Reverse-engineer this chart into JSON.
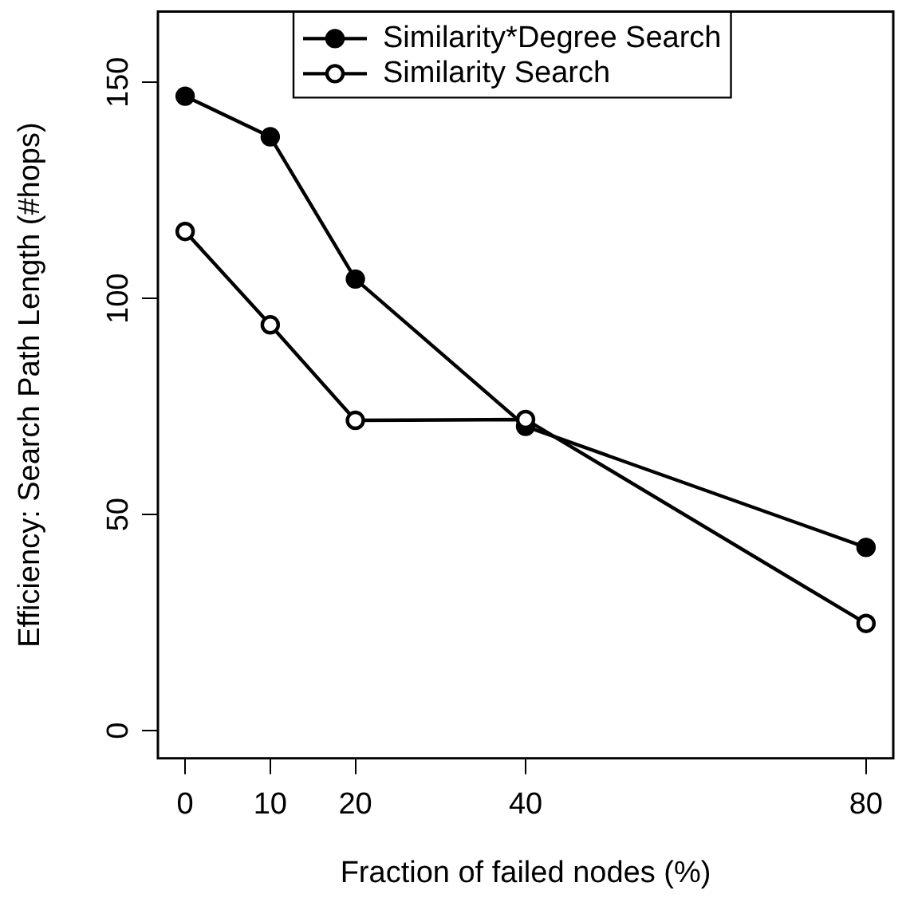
{
  "chart_data": {
    "type": "line",
    "xlabel": "Fraction of failed nodes (%)",
    "ylabel": "Efficiency: Search Path Length (#hops)",
    "x": [
      0,
      10,
      20,
      40,
      80
    ],
    "series": [
      {
        "name": "Similarity*Degree Search",
        "color": "#000000",
        "values": [
          146.8,
          137.4,
          104.5,
          70.4,
          42.4
        ]
      },
      {
        "name": "Similarity Search",
        "color": "#000000",
        "values": [
          115.5,
          93.9,
          71.8,
          72,
          24.8
        ]
      }
    ],
    "xlim": [
      -3.2,
      83.2
    ],
    "xticks": [
      0,
      10,
      20,
      40,
      80
    ],
    "ylim": [
      -6.4,
      166.4
    ],
    "yticks": [
      0,
      50,
      100,
      150
    ],
    "grid": false,
    "legend": "top",
    "marker": "circle",
    "line_style": "solid"
  }
}
